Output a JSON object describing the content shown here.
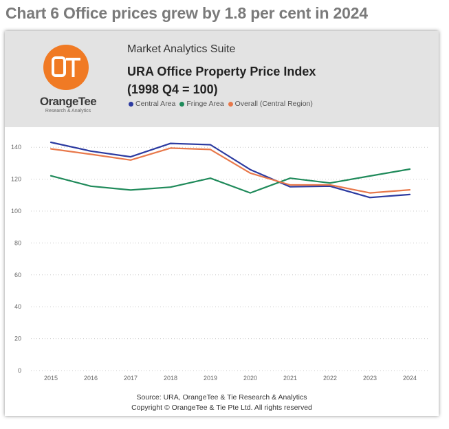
{
  "page": {
    "heading": "Chart 6 Office prices grew by 1.8 per cent in 2024"
  },
  "header": {
    "logo_name": "OrangeTee",
    "logo_sub": "Research & Analytics",
    "suite": "Market Analytics Suite",
    "title_line1": "URA Office Property Price Index",
    "title_line2": "(1998 Q4 = 100)"
  },
  "colors": {
    "brand_orange": "#f07a24",
    "central": "#2b3aa0",
    "fringe": "#1f8a5a",
    "overall": "#e8784a"
  },
  "footer": {
    "source": "Source: URA, OrangeTee & Tie Research & Analytics",
    "copyright": "Copyright © OrangeTee & Tie Pte Ltd. All rights reserved"
  },
  "chart_data": {
    "type": "line",
    "title": "URA Office Property Price Index",
    "subtitle": "(1998 Q4 = 100)",
    "xlabel": "",
    "ylabel": "",
    "x": [
      "2015",
      "2016",
      "2017",
      "2018",
      "2019",
      "2020",
      "2021",
      "2022",
      "2023",
      "2024"
    ],
    "ylim": [
      0,
      150
    ],
    "yticks": [
      0,
      20,
      40,
      60,
      80,
      100,
      120,
      140
    ],
    "grid": true,
    "legend_position": "top",
    "series": [
      {
        "name": "Central Area",
        "color": "#2b3aa0",
        "values": [
          143.1,
          137.6,
          134.0,
          142.4,
          141.6,
          126.0,
          115.2,
          115.6,
          108.5,
          110.4
        ]
      },
      {
        "name": "Fringe Area",
        "color": "#1f8a5a",
        "values": [
          122.1,
          115.6,
          113.2,
          115.0,
          120.6,
          111.4,
          120.6,
          117.6,
          122.0,
          126.3
        ]
      },
      {
        "name": "Overall (Central Region)",
        "color": "#e8784a",
        "values": [
          139.0,
          135.6,
          132.0,
          139.5,
          138.6,
          123.8,
          116.4,
          116.4,
          111.4,
          113.3
        ]
      }
    ]
  }
}
